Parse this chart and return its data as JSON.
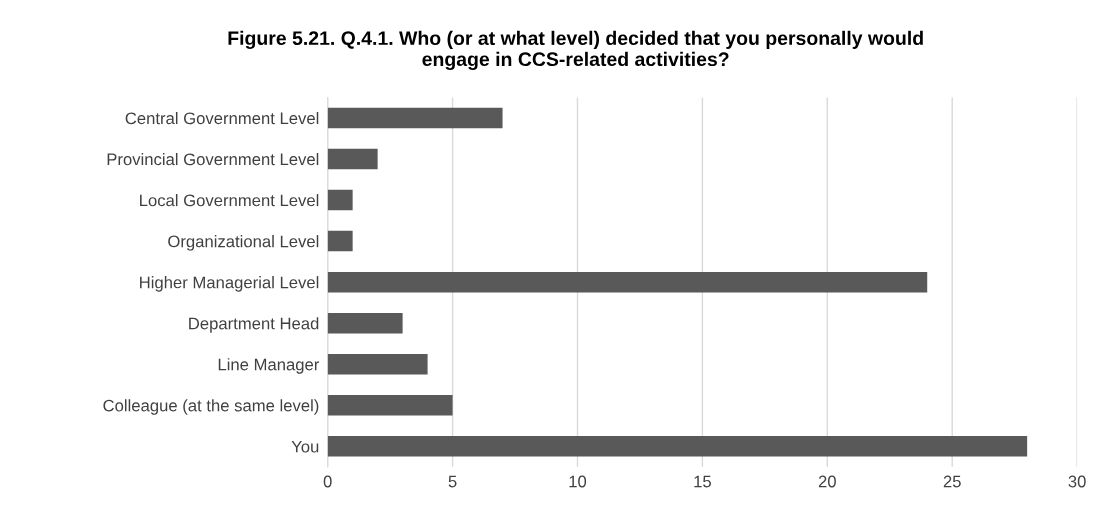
{
  "chart_data": {
    "type": "bar",
    "orientation": "horizontal",
    "title": "Figure 5.21. Q.4.1. Who (or at what level) decided that you personally would\nengage in CCS-related activities?",
    "categories": [
      "Central Government Level",
      "Provincial Government Level",
      "Local Government Level",
      "Organizational Level",
      "Higher Managerial Level",
      "Department Head",
      "Line Manager",
      "Colleague (at the same level)",
      "You"
    ],
    "values": [
      7,
      2,
      1,
      1,
      24,
      3,
      4,
      5,
      28
    ],
    "color": "#595959",
    "xlim": [
      0,
      30
    ],
    "xticks": [
      0,
      5,
      10,
      15,
      20,
      25,
      30
    ],
    "grid": "x"
  }
}
